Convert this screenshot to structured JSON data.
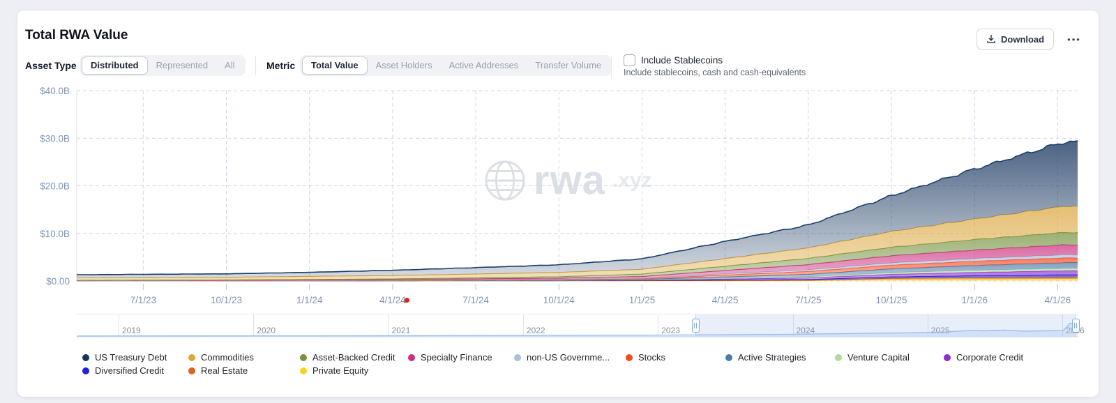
{
  "header": {
    "title": "Total RWA Value",
    "download_label": "Download",
    "more_label": "•••"
  },
  "controls": {
    "asset_type": {
      "label": "Asset Type",
      "options": [
        "Distributed",
        "Represented",
        "All"
      ],
      "selected": "Distributed"
    },
    "metric": {
      "label": "Metric",
      "options": [
        "Total Value",
        "Asset Holders",
        "Active Addresses",
        "Transfer Volume"
      ],
      "selected": "Total Value"
    },
    "stablecoins": {
      "label": "Include Stablecoins",
      "description": "Include stablecoins, cash and cash-equivalents",
      "checked": false
    }
  },
  "watermark": {
    "text": "rwa",
    "suffix": ".xyz"
  },
  "chart_data": [
    {
      "type": "area",
      "stacked": true,
      "title": "Total RWA Value",
      "unit": "USD billions",
      "ylim": [
        0,
        40
      ],
      "grid": true,
      "x_start": 2023.3,
      "x_end": 2026.31,
      "x_points": [
        2023.3,
        2023.5,
        2023.75,
        2024.0,
        2024.25,
        2024.5,
        2024.75,
        2025.0,
        2025.25,
        2025.5,
        2025.75,
        2026.0,
        2026.27
      ],
      "x_tick_values": [
        2023.5,
        2023.75,
        2024.0,
        2024.25,
        2024.5,
        2024.75,
        2025.0,
        2025.25,
        2025.5,
        2025.75,
        2026.0,
        2026.25
      ],
      "x_tick_labels": [
        "7/1/23",
        "10/1/23",
        "1/1/24",
        "4/1/24",
        "7/1/24",
        "10/1/24",
        "1/1/25",
        "4/1/25",
        "7/1/25",
        "10/1/25",
        "1/1/26",
        "4/1/26"
      ],
      "y_tick_values": [
        0,
        10,
        20,
        30,
        40
      ],
      "y_tick_labels": [
        "$0.00",
        "$10.0B",
        "$20.0B",
        "$30.0B",
        "$40.0B"
      ],
      "legend_position": "bottom",
      "series": [
        {
          "name": "us-treasury-debt",
          "label": "US Treasury Debt",
          "color": "#17365f",
          "values": [
            0.65,
            0.69,
            0.72,
            0.85,
            1.1,
            1.35,
            1.6,
            2.2,
            3.6,
            4.8,
            7.5,
            10.5,
            13.5
          ]
        },
        {
          "name": "commodities",
          "label": "Commodities",
          "color": "#dba63c",
          "values": [
            0.5,
            0.52,
            0.55,
            0.65,
            0.7,
            0.8,
            0.9,
            1.0,
            1.6,
            2.2,
            3.3,
            4.3,
            5.5
          ]
        },
        {
          "name": "asset-backed-credit",
          "label": "Asset-Backed Credit",
          "color": "#74923e",
          "values": [
            0.04,
            0.05,
            0.06,
            0.1,
            0.15,
            0.2,
            0.3,
            0.5,
            0.9,
            1.3,
            1.8,
            2.2,
            2.6
          ]
        },
        {
          "name": "specialty-finance",
          "label": "Specialty Finance",
          "color": "#cc2e7d",
          "values": [
            0.03,
            0.04,
            0.05,
            0.08,
            0.1,
            0.15,
            0.2,
            0.35,
            0.7,
            1.1,
            1.5,
            1.8,
            2.1
          ]
        },
        {
          "name": "non-us-government",
          "label": "non-US Governme...",
          "color": "#a9c0de",
          "values": [
            0.02,
            0.03,
            0.03,
            0.04,
            0.05,
            0.06,
            0.08,
            0.1,
            0.25,
            0.35,
            0.45,
            0.55,
            0.65
          ]
        },
        {
          "name": "stocks",
          "label": "Stocks",
          "color": "#f8491c",
          "values": [
            0.01,
            0.01,
            0.02,
            0.03,
            0.04,
            0.08,
            0.1,
            0.15,
            0.4,
            0.6,
            0.8,
            0.9,
            1.0
          ]
        },
        {
          "name": "active-strategies",
          "label": "Active Strategies",
          "color": "#4c7cab",
          "values": [
            0.02,
            0.03,
            0.03,
            0.02,
            0.02,
            0.05,
            0.06,
            0.1,
            0.3,
            0.5,
            0.8,
            1.0,
            1.2
          ]
        },
        {
          "name": "venture-capital",
          "label": "Venture Capital",
          "color": "#b2d8a2",
          "values": [
            0.0,
            0.0,
            0.0,
            0.01,
            0.01,
            0.02,
            0.03,
            0.05,
            0.15,
            0.25,
            0.35,
            0.45,
            0.5
          ]
        },
        {
          "name": "corporate-credit",
          "label": "Corporate Credit",
          "color": "#8f2dd1",
          "values": [
            0.0,
            0.0,
            0.0,
            0.0,
            0.01,
            0.02,
            0.04,
            0.08,
            0.2,
            0.35,
            0.55,
            0.7,
            0.85
          ]
        },
        {
          "name": "diversified-credit",
          "label": "Diversified Credit",
          "color": "#2020df",
          "values": [
            0.01,
            0.01,
            0.02,
            0.02,
            0.02,
            0.03,
            0.04,
            0.05,
            0.1,
            0.15,
            0.3,
            0.4,
            0.5
          ]
        },
        {
          "name": "real-estate",
          "label": "Real Estate",
          "color": "#d9661c",
          "values": [
            0.02,
            0.02,
            0.02,
            0.02,
            0.03,
            0.04,
            0.04,
            0.05,
            0.08,
            0.1,
            0.2,
            0.3,
            0.35
          ]
        },
        {
          "name": "private-equity",
          "label": "Private Equity",
          "color": "#f8d41f",
          "values": [
            0.0,
            0.0,
            0.0,
            0.0,
            0.01,
            0.01,
            0.01,
            0.02,
            0.02,
            0.05,
            0.35,
            0.4,
            0.45
          ]
        }
      ],
      "stack_order_bottom_to_top": [
        "private-equity",
        "real-estate",
        "diversified-credit",
        "corporate-credit",
        "venture-capital",
        "active-strategies",
        "stocks",
        "non-us-government",
        "specialty-finance",
        "asset-backed-credit",
        "commodities",
        "us-treasury-debt"
      ],
      "legend_rows": [
        [
          "us-treasury-debt",
          "commodities",
          "asset-backed-credit",
          "specialty-finance",
          "non-us-government",
          "stocks",
          "active-strategies",
          "venture-capital",
          "corporate-credit"
        ],
        [
          "diversified-credit",
          "real-estate",
          "private-equity"
        ]
      ]
    },
    {
      "type": "area",
      "name": "timeline-overview",
      "title": "",
      "color": "#9fc2ee",
      "x": [
        2018.7,
        2019,
        2020,
        2021,
        2022,
        2023,
        2024,
        2025,
        2025.3,
        2025.5,
        2025.6,
        2025.75,
        2025.9,
        2026.05,
        2026.2,
        2026.25,
        2026.31
      ],
      "values": [
        0.2,
        0.3,
        0.5,
        0.8,
        1.2,
        2.0,
        3.5,
        7.0,
        9.0,
        12.5,
        11.5,
        13.0,
        11.0,
        11.5,
        12.0,
        28.0,
        26.0
      ],
      "ylim": [
        0,
        40
      ]
    }
  ],
  "timeline": {
    "years": [
      "2019",
      "2020",
      "2021",
      "2022",
      "2023",
      "2024",
      "2025",
      "2026"
    ]
  }
}
